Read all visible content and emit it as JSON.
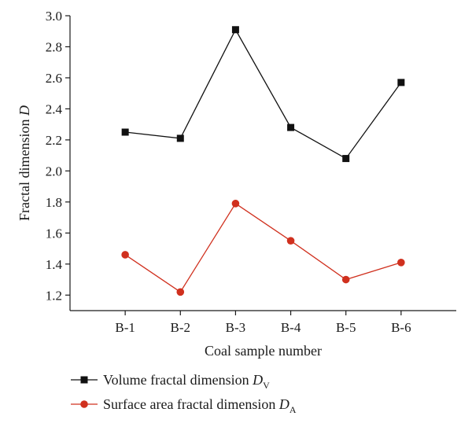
{
  "chart_data": {
    "type": "line",
    "categories": [
      "B-1",
      "B-2",
      "B-3",
      "B-4",
      "B-5",
      "B-6"
    ],
    "series": [
      {
        "name": "Volume fractal dimension D",
        "subscript": "V",
        "marker": "square",
        "color": "#111111",
        "values": [
          2.25,
          2.21,
          2.91,
          2.28,
          2.08,
          2.57
        ]
      },
      {
        "name": "Surface area fractal dimension D",
        "subscript": "A",
        "marker": "circle",
        "color": "#d0301e",
        "values": [
          1.46,
          1.22,
          1.79,
          1.55,
          1.3,
          1.41
        ]
      }
    ],
    "xlabel": "Coal sample number",
    "ylabel_text": "Fractal dimension ",
    "ylabel_var": "D",
    "ylim": [
      1.1,
      3.0
    ],
    "yticks": [
      "1.2",
      "1.4",
      "1.6",
      "1.8",
      "2.0",
      "2.2",
      "2.4",
      "2.6",
      "2.8",
      "3.0"
    ],
    "grid": false,
    "legend_position": "bottom-left"
  }
}
